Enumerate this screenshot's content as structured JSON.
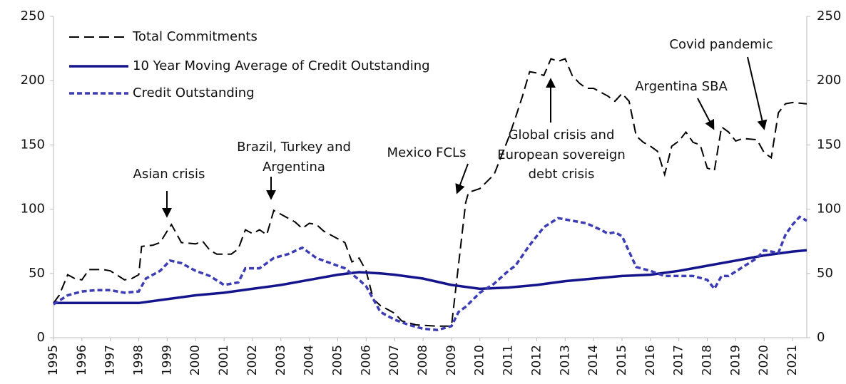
{
  "chart_data": {
    "type": "line",
    "xlim": [
      1995,
      2021.5
    ],
    "xticks": [
      1995,
      1996,
      1997,
      1998,
      1999,
      2000,
      2001,
      2002,
      2003,
      2004,
      2005,
      2006,
      2007,
      2008,
      2009,
      2010,
      2011,
      2012,
      2013,
      2014,
      2015,
      2016,
      2017,
      2018,
      2019,
      2020,
      2021
    ],
    "ylim": [
      0,
      250
    ],
    "yticks": [
      0,
      50,
      100,
      150,
      200,
      250
    ],
    "y2lim": [
      0,
      250
    ],
    "y2ticks": [
      0,
      50,
      100,
      150,
      200,
      250
    ],
    "legend": "upper left",
    "series": [
      {
        "name": "Total Commitments",
        "color": "#000000",
        "dash": "dashed",
        "x": [
          1995,
          1995.2,
          1995.5,
          1995.75,
          1996,
          1996.25,
          1996.75,
          1997,
          1997.5,
          1997.75,
          1998,
          1998.1,
          1998.5,
          1998.75,
          1999,
          1999.15,
          1999.5,
          2000,
          2000.25,
          2000.5,
          2000.75,
          2001.25,
          2001.5,
          2001.75,
          2002,
          2002.25,
          2002.5,
          2002.75,
          2003,
          2003.5,
          2003.75,
          2004,
          2004.25,
          2004.5,
          2005,
          2005.25,
          2005.5,
          2005.75,
          2006,
          2006.25,
          2006.5,
          2007,
          2007.25,
          2007.75,
          2008.5,
          2009,
          2009.5,
          2009.6,
          2010,
          2010.5,
          2011,
          2011.25,
          2011.5,
          2011.75,
          2012,
          2012.25,
          2012.5,
          2012.75,
          2013,
          2013.25,
          2013.5,
          2013.75,
          2014,
          2014.5,
          2014.75,
          2015,
          2015.25,
          2015.5,
          2015.75,
          2016,
          2016.25,
          2016.5,
          2016.75,
          2017,
          2017.25,
          2017.5,
          2017.75,
          2018,
          2018.25,
          2018.5,
          2018.75,
          2019,
          2019.25,
          2019.75,
          2020,
          2020.25,
          2020.5,
          2020.75,
          2021,
          2021.5
        ],
        "values": [
          27,
          33,
          49,
          46,
          45,
          53,
          53,
          52,
          45,
          46,
          49,
          71,
          72,
          74,
          83,
          88,
          74,
          73,
          75,
          68,
          65,
          65,
          69,
          84,
          81,
          84,
          80,
          99,
          96,
          90,
          85,
          89,
          88,
          83,
          77,
          74,
          59,
          62,
          52,
          30,
          25,
          19,
          13,
          10,
          9,
          9,
          105,
          113,
          116,
          127,
          155,
          171,
          188,
          207,
          206,
          204,
          217,
          215,
          217,
          204,
          198,
          194,
          194,
          188,
          184,
          190,
          184,
          157,
          152,
          149,
          145,
          127,
          149,
          153,
          160,
          152,
          150,
          132,
          130,
          164,
          160,
          153,
          155,
          154,
          144,
          140,
          175,
          182,
          183,
          182
        ]
      },
      {
        "name": "10 Year Moving Average of Credit Outstanding",
        "color": "#14148c",
        "dash": "solid",
        "x": [
          1995,
          1998,
          1999,
          2000,
          2001,
          2002,
          2003,
          2004,
          2005,
          2005.75,
          2006.5,
          2007,
          2008,
          2009,
          2010,
          2011,
          2012,
          2013,
          2014,
          2015,
          2016,
          2017,
          2018,
          2019,
          2020,
          2021,
          2021.5
        ],
        "values": [
          27,
          27,
          30,
          33,
          35,
          38,
          41,
          45,
          49,
          51,
          50,
          49,
          46,
          41,
          38,
          39,
          41,
          44,
          46,
          48,
          49,
          52,
          56,
          60,
          64,
          67,
          68
        ]
      },
      {
        "name": "Credit Outstanding",
        "color": "#3c3cb4",
        "dash": "dotted",
        "x": [
          1995,
          1995.5,
          1996,
          1996.5,
          1997,
          1997.5,
          1998,
          1998.25,
          1998.75,
          1999.1,
          1999.5,
          2000,
          2000.5,
          2001,
          2001.5,
          2001.75,
          2002.25,
          2002.75,
          2003.25,
          2003.75,
          2004.25,
          2004.75,
          2005.25,
          2005.75,
          2006,
          2006.5,
          2007,
          2007.5,
          2008,
          2008.5,
          2009,
          2009.25,
          2009.5,
          2010,
          2010.5,
          2011,
          2011.25,
          2011.75,
          2012.25,
          2012.75,
          2013.25,
          2013.75,
          2014.25,
          2014.5,
          2014.75,
          2015,
          2015.5,
          2016,
          2016.5,
          2017,
          2017.5,
          2018,
          2018.25,
          2018.5,
          2018.75,
          2019.25,
          2019.75,
          2020,
          2020.5,
          2020.75,
          2021,
          2021.25,
          2021.5
        ],
        "values": [
          26,
          33,
          36,
          37,
          37,
          35,
          36,
          46,
          52,
          60,
          58,
          52,
          48,
          41,
          43,
          54,
          54,
          62,
          65,
          70,
          62,
          58,
          54,
          45,
          40,
          20,
          14,
          10,
          7,
          6,
          9,
          20,
          24,
          35,
          42,
          52,
          56,
          72,
          86,
          93,
          91,
          89,
          84,
          81,
          82,
          79,
          55,
          52,
          48,
          48,
          48,
          45,
          38,
          48,
          48,
          55,
          62,
          68,
          66,
          80,
          88,
          94,
          91
        ]
      }
    ],
    "annotations": [
      {
        "lines": [
          "Asian crisis"
        ]
      },
      {
        "lines": [
          "Brazil, Turkey and",
          "Argentina"
        ]
      },
      {
        "lines": [
          "Mexico FCLs"
        ]
      },
      {
        "lines": [
          "Global crisis and",
          "European sovereign",
          "debt crisis"
        ]
      },
      {
        "lines": [
          "Argentina SBA"
        ]
      },
      {
        "lines": [
          "Covid pandemic"
        ]
      }
    ]
  }
}
